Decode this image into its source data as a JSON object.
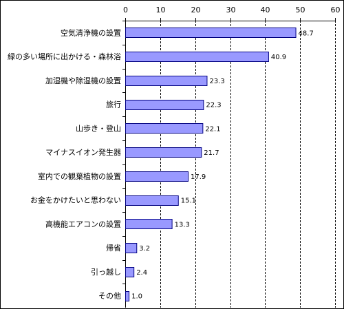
{
  "chart_data": {
    "type": "bar",
    "orientation": "horizontal",
    "title": "",
    "xlabel": "",
    "ylabel": "",
    "xlim": [
      0,
      60
    ],
    "x_ticks": [
      "0",
      "10",
      "20",
      "30",
      "40",
      "50",
      "60"
    ],
    "x_tick_values": [
      0,
      10,
      20,
      30,
      40,
      50,
      60
    ],
    "x_axis_position": "top",
    "grid": "vertical dashed",
    "bar_color": "#9999ff",
    "bar_border_color": "#000080",
    "categories": [
      "空気清浄機の設置",
      "緑の多い場所に出かける・森林浴",
      "加湿機や除湿機の設置",
      "旅行",
      "山歩き・登山",
      "マイナスイオン発生器",
      "室内での観葉植物の設置",
      "お金をかけたいと思わない",
      "高機能エアコンの設置",
      "帰省",
      "引っ越し",
      "その他"
    ],
    "values": [
      48.7,
      40.9,
      23.3,
      22.3,
      22.1,
      21.7,
      17.9,
      15.1,
      13.3,
      3.2,
      2.4,
      1.0
    ],
    "value_labels": [
      "48.7",
      "40.9",
      "23.3",
      "22.3",
      "22.1",
      "21.7",
      "17.9",
      "15.1",
      "13.3",
      "3.2",
      "2.4",
      "1.0"
    ]
  }
}
